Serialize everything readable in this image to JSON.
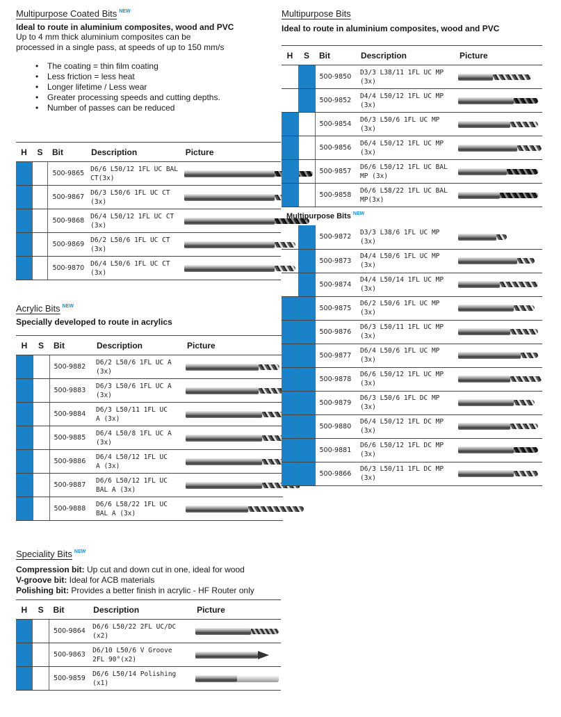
{
  "coated": {
    "title": "Multipurpose Coated Bits",
    "new_badge": "NEW",
    "subtitle": "Ideal to route in aluminium composites, wood and PVC",
    "desc1": "Up to 4 mm thick aluminium composites can be",
    "desc2": "processed in a single pass, at speeds of up to 150 mm/s",
    "features": [
      "The coating = thin film coating",
      "Less friction = less heat",
      "Longer lifetime / Less wear",
      "Greater processing speeds and cutting depths.",
      "Number of passes can be reduced"
    ],
    "headers": {
      "h": "H",
      "s": "S",
      "bit": "Bit",
      "description": "Description",
      "picture": "Picture"
    },
    "rows": [
      {
        "code": "500-9865",
        "desc1": "D6/6 L50/12 1FL UC BAL",
        "desc2": "CT(3x)",
        "h": true,
        "s": false
      },
      {
        "code": "500-9867",
        "desc1": "D6/3 L50/6 1FL UC CT",
        "desc2": "(3x)",
        "h": true,
        "s": false
      },
      {
        "code": "500-9868",
        "desc1": "D6/4 L50/12 1FL UC CT",
        "desc2": "(3x)",
        "h": true,
        "s": false
      },
      {
        "code": "500-9869",
        "desc1": "D6/2 L50/6 1FL UC CT",
        "desc2": "(3x)",
        "h": true,
        "s": false
      },
      {
        "code": "500-9870",
        "desc1": "D6/4 L50/6 1FL UC CT",
        "desc2": "(3x)",
        "h": true,
        "s": false
      }
    ]
  },
  "acrylic": {
    "title": "Acrylic Bits",
    "new_badge": "NEW",
    "subtitle": "Specially developed to route in acrylics",
    "headers": {
      "h": "H",
      "s": "S",
      "bit": "Bit",
      "description": "Description",
      "picture": "Picture"
    },
    "rows": [
      {
        "code": "500-9882",
        "desc1": "D6/2 L50/6 1FL UC A",
        "desc2": "(3x)",
        "h": true,
        "s": false
      },
      {
        "code": "500-9883",
        "desc1": "D6/3 L50/6 1FL UC A",
        "desc2": "(3x)",
        "h": true,
        "s": false
      },
      {
        "code": "500-9884",
        "desc1": "D6/3 L50/11 1FL UC",
        "desc2": "A (3x)",
        "h": true,
        "s": false
      },
      {
        "code": "500-9885",
        "desc1": "D6/4 L50/8 1FL UC A",
        "desc2": "(3x)",
        "h": true,
        "s": false
      },
      {
        "code": "500-9886",
        "desc1": "D6/4 L50/12 1FL UC",
        "desc2": "A (3x)",
        "h": true,
        "s": false
      },
      {
        "code": "500-9887",
        "desc1": "D6/6 L50/12 1FL UC",
        "desc2": "BAL A (3x)",
        "h": true,
        "s": false
      },
      {
        "code": "500-9888",
        "desc1": "D6/6 L58/22 1FL UC",
        "desc2": "BAL A (3x)",
        "h": true,
        "s": false
      }
    ]
  },
  "speciality": {
    "title": "Speciality Bits",
    "new_badge": "NEW",
    "lines": [
      {
        "label": "Compression bit:",
        "text": " Up cut and down cut in one, ideal for wood"
      },
      {
        "label": "V-groove bit:",
        "text": " Ideal for ACB materials"
      },
      {
        "label": "Polishing bit:",
        "text": " Provides a better finish in acrylic - HF Router only"
      }
    ],
    "headers": {
      "h": "H",
      "s": "S",
      "bit": "Bit",
      "description": "Description",
      "picture": "Picture"
    },
    "rows": [
      {
        "code": "500-9864",
        "desc1": "D6/6 L50/22 2FL UC/DC",
        "desc2": "(x2)",
        "h": true,
        "s": false
      },
      {
        "code": "500-9863",
        "desc1": "D6/10 L50/6 V Groove",
        "desc2": "2FL 90°(x2)",
        "h": true,
        "s": false
      },
      {
        "code": "500-9859",
        "desc1": "D6/6 L50/14 Polishing",
        "desc2": "(x1)",
        "h": true,
        "s": false
      }
    ]
  },
  "multi": {
    "title": "Multipurpose Bits",
    "subtitle": "Ideal to route in aluminium composites, wood and PVC",
    "headers": {
      "h": "H",
      "s": "S",
      "bit": "Bit",
      "description": "Description",
      "picture": "Picture"
    },
    "rows": [
      {
        "code": "500-9850",
        "desc1": "D3/3 L38/11 1FL UC MP",
        "desc2": "(3x)",
        "h": false,
        "s": true
      },
      {
        "code": "500-9852",
        "desc1": "D4/4 L50/12 1FL UC MP",
        "desc2": "(3x)",
        "h": false,
        "s": true
      },
      {
        "code": "500-9854",
        "desc1": "D6/3 L50/6 1FL UC MP",
        "desc2": "(3x)",
        "h": true,
        "s": false
      },
      {
        "code": "500-9856",
        "desc1": "D6/4 L50/12 1FL UC MP",
        "desc2": "(3x)",
        "h": true,
        "s": false
      },
      {
        "code": "500-9857",
        "desc1": "D6/6 L50/12 1FL UC BAL",
        "desc2": "MP (3x)",
        "h": true,
        "s": false
      },
      {
        "code": "500-9858",
        "desc1": "D6/6 L58/22 1FL UC BAL",
        "desc2": "MP(3x)",
        "h": true,
        "s": false
      }
    ],
    "sub_title": "Multipurpose Bits",
    "new_badge": "NEW",
    "rows2": [
      {
        "code": "500-9872",
        "desc1": "D3/3 L38/6 1FL UC MP",
        "desc2": "(3x)",
        "h": false,
        "s": true
      },
      {
        "code": "500-9873",
        "desc1": "D4/4 L50/6 1FL UC MP",
        "desc2": "(3x)",
        "h": false,
        "s": true
      },
      {
        "code": "500-9874",
        "desc1": "D4/4 L50/14 1FL UC MP",
        "desc2": "(3x)",
        "h": false,
        "s": true
      },
      {
        "code": "500-9875",
        "desc1": "D6/2 L50/6 1FL UC MP",
        "desc2": "(3x)",
        "h": true,
        "s": true
      },
      {
        "code": "500-9876",
        "desc1": "D6/3 L50/11 1FL UC MP",
        "desc2": "(3x)",
        "h": true,
        "s": true
      },
      {
        "code": "500-9877",
        "desc1": "D6/4 L50/6 1FL UC MP",
        "desc2": "(3x)",
        "h": true,
        "s": true
      },
      {
        "code": "500-9878",
        "desc1": "D6/6 L50/12 1FL UC MP",
        "desc2": "(3x)",
        "h": true,
        "s": true
      },
      {
        "code": "500-9879",
        "desc1": "D6/3 L50/6 1FL DC MP",
        "desc2": "(3x)",
        "h": true,
        "s": true
      },
      {
        "code": "500-9880",
        "desc1": "D6/4 L50/12 1FL DC MP",
        "desc2": "(3x)",
        "h": true,
        "s": true
      },
      {
        "code": "500-9881",
        "desc1": "D6/6 L50/12 1FL DC MP",
        "desc2": "(3x)",
        "h": true,
        "s": true
      },
      {
        "code": "500-9866",
        "desc1": "D6/3 L50/11 1FL DC MP",
        "desc2": "(3x)",
        "h": true,
        "s": true
      }
    ]
  }
}
